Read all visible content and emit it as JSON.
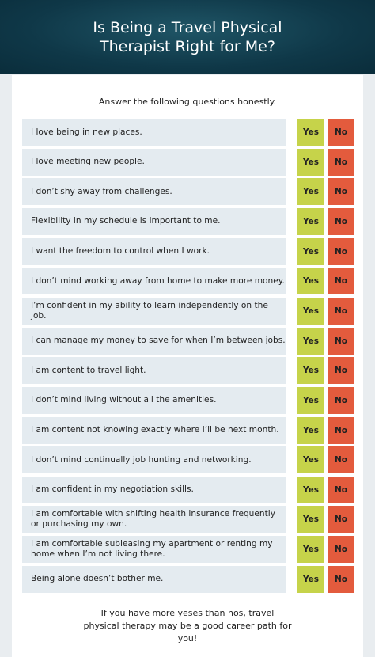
{
  "header": {
    "title": "Is Being a Travel Physical Therapist Right for Me?"
  },
  "intro": "Answer the following questions honestly.",
  "options": [
    "Yes",
    "No"
  ],
  "questions": [
    "I love being in new places.",
    "I love meeting new people.",
    "I don’t shy away from challenges.",
    "Flexibility in my schedule is important to me.",
    "I want the freedom to control when I work.",
    "I don’t mind working away from home to make more money.",
    "I’m confident in my ability to learn independently on the job.",
    "I can manage my money to save for when I’m between jobs.",
    "I am content to travel light.",
    "I don’t mind living without all the amenities.",
    "I am content not knowing exactly where I’ll be next month.",
    "I don’t mind continually job hunting and networking.",
    "I am confident in my negotiation skills.",
    "I am comfortable with shifting health insurance frequently or purchasing my own.",
    "I am comfortable subleasing my apartment or renting my home when I’m not living there.",
    "Being alone doesn’t bother me."
  ],
  "footer": "If you have more yeses than nos, travel physical therapy may be a good career path for you!"
}
